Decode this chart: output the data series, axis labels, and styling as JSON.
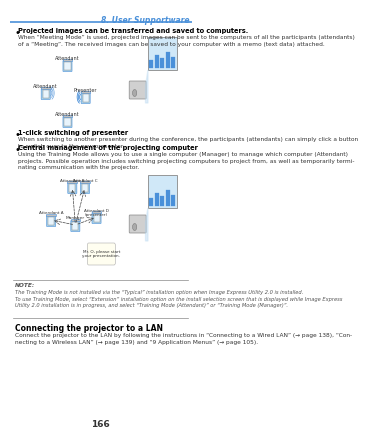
{
  "page_number": "166",
  "header_text": "8. User Supportware",
  "header_line_color": "#4a90d9",
  "background_color": "#ffffff",
  "text_color": "#222222",
  "bullet_bold_color": "#000000",
  "section_heading_color": "#000000",
  "bullet1_bold": "Projected images can be transferred and saved to computers.",
  "bullet1_body": "When “Meeting Mode” is used, projected images can be sent to the computers of all the participants (attendants)\nof a “Meeting”. The received images can be saved to your computer with a memo (text data) attached.",
  "bullet2_bold": "1-click switching of presenter",
  "bullet2_body": "When switching to another presenter during the conference, the participants (attendants) can simply click a button\nto switch over to the new presenter.",
  "bullet3_bold": "Central management of the projecting computer",
  "bullet3_body": "Using the Training Mode allows you to use a single computer (Manager) to manage which computer (Attendant)\nprojects. Possible operation includes switching projecting computers to project from, as well as temporarily termi-\nnating communication with the projector.",
  "note_label": "NOTE:",
  "note_body": "The Training Mode is not installed via the “Typical” installation option when Image Express Utility 2.0 is installed.\nTo use Training Mode, select “Extension” installation option on the install selection screen that is displayed while Image Express\nUtility 2.0 installation is in progress, and select “Training Mode (Attendant)” or “Training Mode (Manager)”.",
  "section2_heading": "Connecting the projector to a LAN",
  "section2_body": "Connect the projector to the LAN by following the instructions in “Connecting to a Wired LAN” (→ page 138), “Con-\nnecting to a Wireless LAN” (→ page 139) and “9 Application Menus” (→ page 105).",
  "diagram1_labels": [
    "Attendant",
    "Attendant",
    "Presenter",
    "Attendant"
  ],
  "diagram2_labels": [
    "Manager",
    "Attendant A",
    "Attendant B",
    "Attendant C",
    "Attendant D\n(presenter)"
  ],
  "speech_bubble": "Mr. O, please start\nyour presentation.",
  "note_line_color": "#888888"
}
